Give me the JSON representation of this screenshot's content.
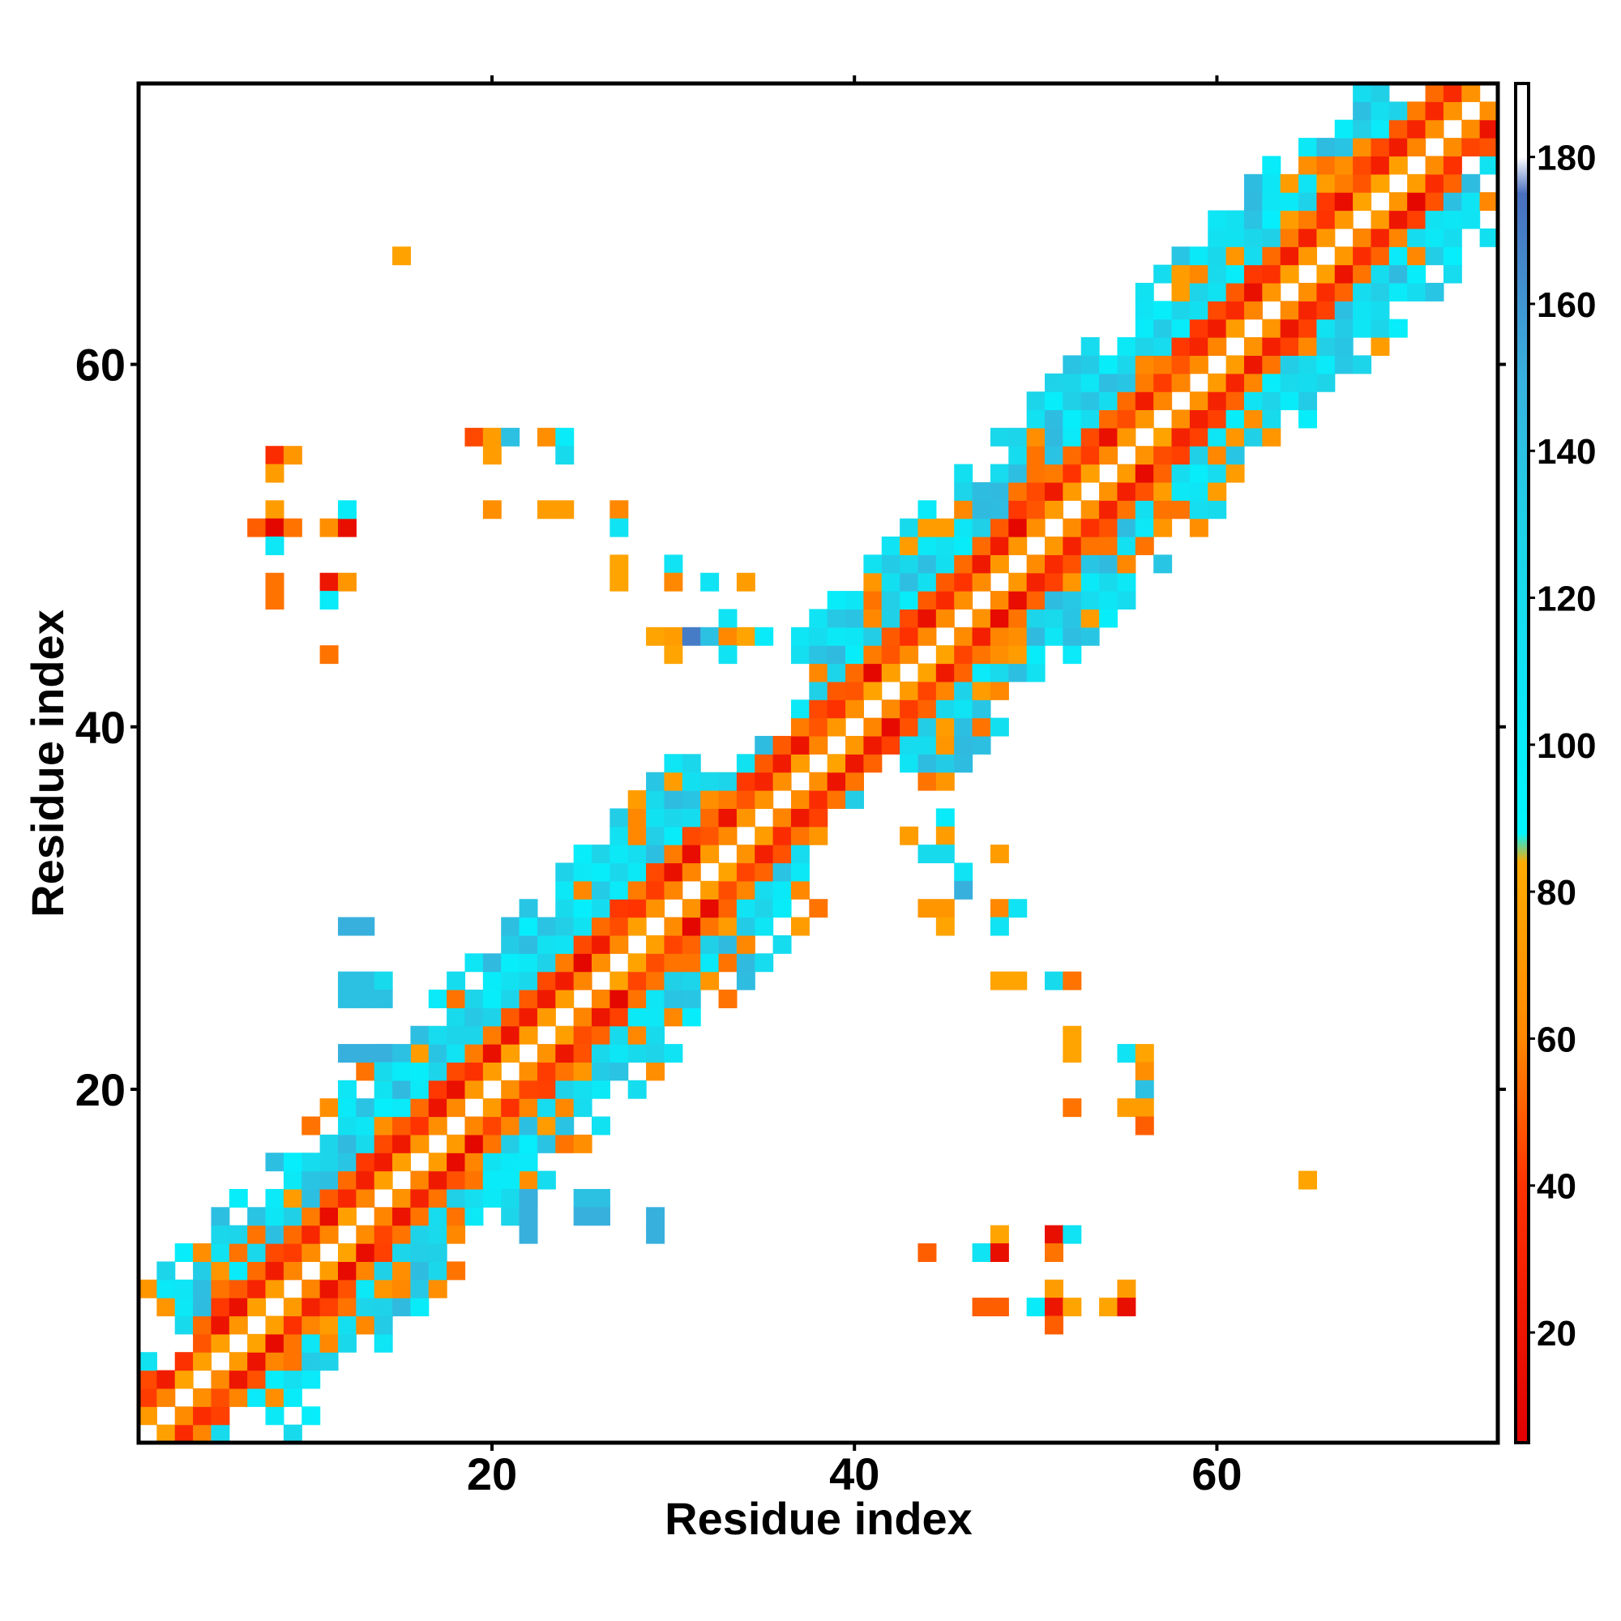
{
  "chart_data": {
    "type": "heatmap",
    "title": "",
    "xlabel": "Residue index",
    "ylabel": "Residue index",
    "xlim": [
      1,
      75
    ],
    "ylim": [
      1,
      75
    ],
    "x_ticks": [
      20,
      40,
      60
    ],
    "y_ticks": [
      20,
      40,
      60
    ],
    "colorbar": {
      "range": [
        5,
        190
      ],
      "ticks": [
        20,
        40,
        60,
        80,
        100,
        120,
        140,
        160,
        180
      ],
      "stops": [
        {
          "value": 5,
          "color": "#e00000"
        },
        {
          "value": 40,
          "color": "#ff3300"
        },
        {
          "value": 60,
          "color": "#ff8800"
        },
        {
          "value": 84,
          "color": "#ffaa00"
        },
        {
          "value": 88,
          "color": "#00f5ff"
        },
        {
          "value": 130,
          "color": "#1fd2e8"
        },
        {
          "value": 150,
          "color": "#38b0dd"
        },
        {
          "value": 175,
          "color": "#4a6fc0"
        },
        {
          "value": 180,
          "color": "#ffffff"
        },
        {
          "value": 190,
          "color": "#ffffff"
        }
      ]
    },
    "diagonal_band_halfwidth": 8,
    "off_diagonal_cells": [
      [
        15,
        66,
        78
      ],
      [
        8,
        55,
        35
      ],
      [
        9,
        55,
        70
      ],
      [
        8,
        54,
        75
      ],
      [
        8,
        52,
        75
      ],
      [
        7,
        51,
        50
      ],
      [
        8,
        51,
        10
      ],
      [
        9,
        51,
        55
      ],
      [
        11,
        51,
        65
      ],
      [
        12,
        51,
        15
      ],
      [
        12,
        52,
        100
      ],
      [
        8,
        50,
        105
      ],
      [
        8,
        48,
        55
      ],
      [
        8,
        47,
        55
      ],
      [
        11,
        48,
        20
      ],
      [
        12,
        48,
        70
      ],
      [
        11,
        47,
        100
      ],
      [
        11,
        44,
        55
      ],
      [
        19,
        56,
        45
      ],
      [
        20,
        56,
        75
      ],
      [
        21,
        56,
        140
      ],
      [
        23,
        56,
        65
      ],
      [
        24,
        56,
        100
      ],
      [
        20,
        55,
        75
      ],
      [
        24,
        55,
        120
      ],
      [
        20,
        52,
        65
      ],
      [
        23,
        52,
        75
      ],
      [
        24,
        52,
        75
      ],
      [
        27,
        52,
        60
      ],
      [
        27,
        51,
        110
      ],
      [
        27,
        49,
        80
      ],
      [
        27,
        48,
        80
      ],
      [
        30,
        49,
        110
      ],
      [
        30,
        48,
        60
      ],
      [
        32,
        48,
        110
      ],
      [
        34,
        48,
        75
      ],
      [
        29,
        45,
        80
      ],
      [
        30,
        45,
        75
      ],
      [
        31,
        45,
        170
      ],
      [
        32,
        45,
        140
      ],
      [
        33,
        45,
        60
      ],
      [
        34,
        45,
        80
      ],
      [
        35,
        45,
        100
      ],
      [
        30,
        44,
        80
      ],
      [
        33,
        44,
        110
      ],
      [
        33,
        46,
        110
      ],
      [
        12,
        29,
        150
      ],
      [
        13,
        29,
        150
      ],
      [
        12,
        26,
        140
      ],
      [
        13,
        26,
        140
      ],
      [
        14,
        26,
        120
      ],
      [
        12,
        25,
        140
      ],
      [
        13,
        25,
        140
      ],
      [
        14,
        25,
        140
      ],
      [
        12,
        22,
        150
      ],
      [
        13,
        22,
        150
      ],
      [
        14,
        22,
        150
      ],
      [
        15,
        22,
        140
      ],
      [
        14,
        21,
        120
      ],
      [
        15,
        21,
        100
      ],
      [
        20,
        15,
        100
      ],
      [
        21,
        15,
        100
      ],
      [
        21,
        14,
        120
      ],
      [
        22,
        14,
        150
      ],
      [
        22,
        13,
        150
      ],
      [
        22,
        12,
        150
      ],
      [
        25,
        14,
        140
      ],
      [
        26,
        14,
        140
      ],
      [
        25,
        13,
        150
      ],
      [
        26,
        13,
        150
      ],
      [
        29,
        13,
        150
      ],
      [
        29,
        12,
        150
      ],
      [
        43,
        34,
        75
      ],
      [
        45,
        35,
        100
      ],
      [
        45,
        34,
        75
      ],
      [
        44,
        33,
        120
      ],
      [
        45,
        33,
        120
      ],
      [
        48,
        33,
        75
      ],
      [
        46,
        32,
        110
      ],
      [
        46,
        31,
        150
      ],
      [
        44,
        30,
        70
      ],
      [
        45,
        30,
        70
      ],
      [
        45,
        29,
        80
      ],
      [
        48,
        30,
        60
      ],
      [
        49,
        30,
        110
      ],
      [
        48,
        29,
        110
      ],
      [
        48,
        26,
        80
      ],
      [
        49,
        26,
        80
      ],
      [
        51,
        26,
        120
      ],
      [
        52,
        26,
        55
      ],
      [
        52,
        23,
        80
      ],
      [
        52,
        22,
        80
      ],
      [
        55,
        22,
        110
      ],
      [
        56,
        22,
        80
      ],
      [
        56,
        21,
        65
      ],
      [
        56,
        20,
        140
      ],
      [
        52,
        19,
        55
      ],
      [
        55,
        19,
        75
      ],
      [
        56,
        19,
        75
      ],
      [
        56,
        18,
        50
      ],
      [
        65,
        15,
        80
      ],
      [
        48,
        12,
        80
      ],
      [
        51,
        12,
        15
      ],
      [
        52,
        12,
        110
      ],
      [
        44,
        11,
        50
      ],
      [
        47,
        11,
        110
      ],
      [
        48,
        11,
        15
      ],
      [
        51,
        11,
        55
      ],
      [
        51,
        9,
        75
      ],
      [
        55,
        9,
        75
      ],
      [
        47,
        8,
        50
      ],
      [
        48,
        8,
        50
      ],
      [
        50,
        8,
        100
      ],
      [
        51,
        8,
        20
      ],
      [
        52,
        8,
        80
      ],
      [
        54,
        8,
        80
      ],
      [
        55,
        8,
        15
      ],
      [
        51,
        7,
        50
      ]
    ]
  }
}
